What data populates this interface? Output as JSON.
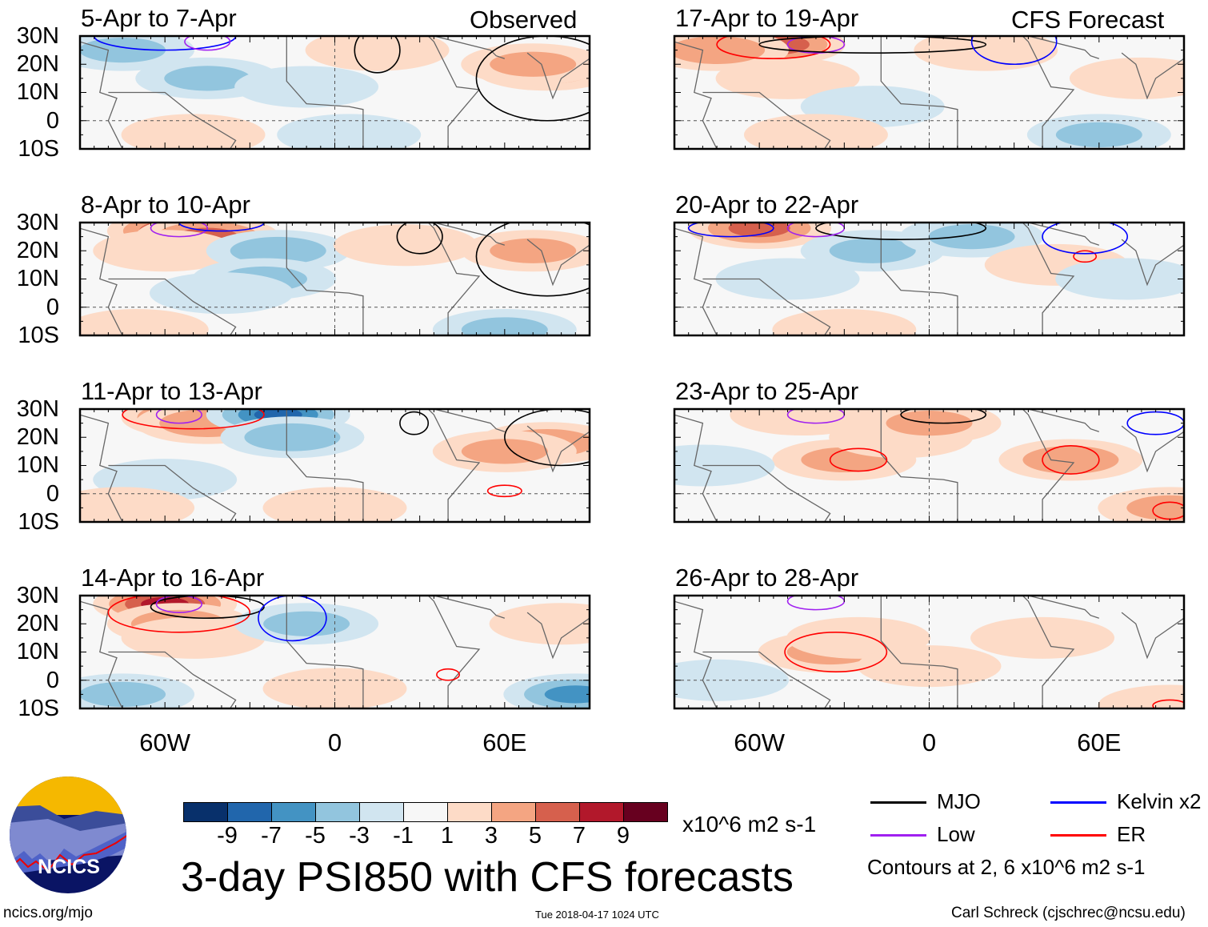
{
  "left_header": "Observed",
  "right_header": "CFS Forecast",
  "lat_labels": [
    "30N",
    "20N",
    "10N",
    "0",
    "10S"
  ],
  "lon_labels": [
    "60W",
    "0",
    "60E"
  ],
  "panels": [
    {
      "title": "5-Apr to 7-Apr",
      "col": 0,
      "row": 0,
      "anoms": [
        [
          -45,
          15,
          -3
        ],
        [
          -75,
          25,
          -3
        ],
        [
          -10,
          12,
          -2
        ],
        [
          75,
          18,
          4
        ],
        [
          70,
          20,
          3
        ],
        [
          15,
          25,
          2
        ],
        [
          -50,
          -5,
          1
        ],
        [
          5,
          -5,
          -2
        ]
      ],
      "contours": [
        {
          "type": "kelvin",
          "lon": -60,
          "lat": 30,
          "rx": 25,
          "ry": 5
        },
        {
          "type": "mjo",
          "lon": 75,
          "lat": 15,
          "rx": 25,
          "ry": 15
        },
        {
          "type": "mjo",
          "lon": 15,
          "lat": 25,
          "rx": 8,
          "ry": 8
        },
        {
          "type": "low",
          "lon": -45,
          "lat": 28,
          "rx": 8,
          "ry": 3
        }
      ]
    },
    {
      "title": "8-Apr to 10-Apr",
      "col": 0,
      "row": 1,
      "anoms": [
        [
          -55,
          27,
          7
        ],
        [
          -45,
          25,
          5
        ],
        [
          -60,
          20,
          2
        ],
        [
          -20,
          20,
          -4
        ],
        [
          -25,
          10,
          -3
        ],
        [
          70,
          20,
          3
        ],
        [
          25,
          22,
          2
        ],
        [
          60,
          -8,
          -3
        ],
        [
          -70,
          -8,
          2
        ],
        [
          -40,
          5,
          -2
        ]
      ],
      "contours": [
        {
          "type": "low",
          "lon": -55,
          "lat": 28,
          "rx": 10,
          "ry": 3
        },
        {
          "type": "kelvin",
          "lon": -40,
          "lat": 30,
          "rx": 15,
          "ry": 3
        },
        {
          "type": "mjo",
          "lon": 75,
          "lat": 18,
          "rx": 25,
          "ry": 14
        },
        {
          "type": "mjo",
          "lon": 30,
          "lat": 25,
          "rx": 8,
          "ry": 6
        }
      ]
    },
    {
      "title": "11-Apr to 13-Apr",
      "col": 0,
      "row": 2,
      "anoms": [
        [
          -50,
          27,
          7
        ],
        [
          -45,
          25,
          4
        ],
        [
          -20,
          28,
          -7
        ],
        [
          -15,
          20,
          -4
        ],
        [
          -60,
          5,
          -2
        ],
        [
          75,
          18,
          4
        ],
        [
          60,
          15,
          3
        ],
        [
          -75,
          -5,
          2
        ],
        [
          0,
          -5,
          2
        ]
      ],
      "contours": [
        {
          "type": "er",
          "lon": -50,
          "lat": 28,
          "rx": 25,
          "ry": 5
        },
        {
          "type": "low",
          "lon": -55,
          "lat": 28,
          "rx": 8,
          "ry": 3
        },
        {
          "type": "mjo",
          "lon": 80,
          "lat": 20,
          "rx": 20,
          "ry": 10
        },
        {
          "type": "mjo",
          "lon": 28,
          "lat": 25,
          "rx": 5,
          "ry": 4
        },
        {
          "type": "er",
          "lon": 60,
          "lat": 1,
          "rx": 6,
          "ry": 2
        }
      ]
    },
    {
      "title": "14-Apr to 16-Apr",
      "col": 0,
      "row": 3,
      "anoms": [
        [
          -60,
          27,
          7
        ],
        [
          -55,
          20,
          4
        ],
        [
          -50,
          15,
          2
        ],
        [
          -10,
          20,
          -3
        ],
        [
          -75,
          -5,
          -3
        ],
        [
          85,
          -5,
          -5
        ],
        [
          0,
          -3,
          2
        ],
        [
          80,
          20,
          2
        ]
      ],
      "contours": [
        {
          "type": "er",
          "lon": -55,
          "lat": 24,
          "rx": 25,
          "ry": 7
        },
        {
          "type": "mjo",
          "lon": -45,
          "lat": 26,
          "rx": 20,
          "ry": 4
        },
        {
          "type": "low",
          "lon": -55,
          "lat": 27,
          "rx": 8,
          "ry": 3
        },
        {
          "type": "kelvin",
          "lon": -15,
          "lat": 22,
          "rx": 12,
          "ry": 8
        },
        {
          "type": "er",
          "lon": 40,
          "lat": 2,
          "rx": 4,
          "ry": 2
        }
      ]
    },
    {
      "title": "17-Apr to 19-Apr",
      "col": 1,
      "row": 0,
      "anoms": [
        [
          -55,
          27,
          6
        ],
        [
          -75,
          25,
          4
        ],
        [
          -50,
          15,
          2
        ],
        [
          -20,
          5,
          -2
        ],
        [
          60,
          -5,
          -3
        ],
        [
          75,
          15,
          2
        ],
        [
          20,
          25,
          2
        ],
        [
          -40,
          -5,
          1
        ]
      ],
      "contours": [
        {
          "type": "er",
          "lon": -55,
          "lat": 27,
          "rx": 20,
          "ry": 5
        },
        {
          "type": "low",
          "lon": -40,
          "lat": 27,
          "rx": 10,
          "ry": 3
        },
        {
          "type": "mjo",
          "lon": -20,
          "lat": 27,
          "rx": 40,
          "ry": 3
        },
        {
          "type": "kelvin",
          "lon": 30,
          "lat": 28,
          "rx": 15,
          "ry": 8
        }
      ]
    },
    {
      "title": "20-Apr to 22-Apr",
      "col": 1,
      "row": 1,
      "anoms": [
        [
          -60,
          28,
          5
        ],
        [
          -20,
          20,
          -3
        ],
        [
          15,
          25,
          -3
        ],
        [
          -50,
          10,
          -2
        ],
        [
          45,
          15,
          2
        ],
        [
          -30,
          -8,
          2
        ],
        [
          70,
          10,
          -2
        ]
      ],
      "contours": [
        {
          "type": "kelvin",
          "lon": -70,
          "lat": 28,
          "rx": 15,
          "ry": 3
        },
        {
          "type": "mjo",
          "lon": -10,
          "lat": 28,
          "rx": 30,
          "ry": 4
        },
        {
          "type": "low",
          "lon": -40,
          "lat": 28,
          "rx": 10,
          "ry": 3
        },
        {
          "type": "er",
          "lon": 55,
          "lat": 18,
          "rx": 4,
          "ry": 2
        },
        {
          "type": "kelvin",
          "lon": 55,
          "lat": 25,
          "rx": 15,
          "ry": 6
        }
      ]
    },
    {
      "title": "23-Apr to 25-Apr",
      "col": 1,
      "row": 2,
      "anoms": [
        [
          -30,
          12,
          3
        ],
        [
          -10,
          20,
          2
        ],
        [
          50,
          12,
          4
        ],
        [
          0,
          25,
          3
        ],
        [
          -80,
          10,
          -2
        ],
        [
          85,
          -5,
          3
        ],
        [
          -45,
          28,
          2
        ]
      ],
      "contours": [
        {
          "type": "low",
          "lon": -40,
          "lat": 28,
          "rx": 10,
          "ry": 3
        },
        {
          "type": "er",
          "lon": -25,
          "lat": 12,
          "rx": 10,
          "ry": 4
        },
        {
          "type": "er",
          "lon": 50,
          "lat": 12,
          "rx": 10,
          "ry": 5
        },
        {
          "type": "mjo",
          "lon": 5,
          "lat": 28,
          "rx": 15,
          "ry": 3
        },
        {
          "type": "kelvin",
          "lon": 80,
          "lat": 25,
          "rx": 10,
          "ry": 4
        },
        {
          "type": "er",
          "lon": 85,
          "lat": -6,
          "rx": 6,
          "ry": 3
        }
      ]
    },
    {
      "title": "26-Apr to 28-Apr",
      "col": 1,
      "row": 3,
      "anoms": [
        [
          -35,
          10,
          3
        ],
        [
          -25,
          15,
          2
        ],
        [
          40,
          15,
          2
        ],
        [
          0,
          5,
          1
        ],
        [
          -75,
          0,
          -2
        ],
        [
          85,
          -9,
          2
        ]
      ],
      "contours": [
        {
          "type": "er",
          "lon": -33,
          "lat": 10,
          "rx": 18,
          "ry": 7
        },
        {
          "type": "low",
          "lon": -40,
          "lat": 28,
          "rx": 10,
          "ry": 3
        },
        {
          "type": "er",
          "lon": 85,
          "lat": -9,
          "rx": 6,
          "ry": 2
        }
      ]
    }
  ],
  "colorbar": {
    "colors": [
      "#08306b",
      "#2166ac",
      "#4393c3",
      "#92c5de",
      "#d1e5f0",
      "#f7f7f7",
      "#fddbc7",
      "#f4a582",
      "#d6604d",
      "#b2182b",
      "#67001f"
    ],
    "ticks": [
      "-9",
      "-7",
      "-5",
      "-3",
      "-1",
      "1",
      "3",
      "5",
      "7",
      "9"
    ],
    "units": "x10^6 m2 s-1"
  },
  "contour_colors": {
    "mjo": "#000000",
    "low": "#a020f0",
    "kelvin": "#0000ff",
    "er": "#ff0000"
  },
  "legend": [
    {
      "label": "MJO",
      "type": "mjo"
    },
    {
      "label": "Kelvin x2",
      "type": "kelvin"
    },
    {
      "label": "Low",
      "type": "low"
    },
    {
      "label": "ER",
      "type": "er"
    }
  ],
  "contours_note": "Contours at 2, 6 x10^6 m2 s-1",
  "main_title": "3-day PSI850 with CFS forecasts",
  "logo_text": "NCICS",
  "website": "ncics.org/mjo",
  "timestamp": "Tue 2018-04-17 1024 UTC",
  "author": "Carl Schreck (cjschrec@ncsu.edu)"
}
